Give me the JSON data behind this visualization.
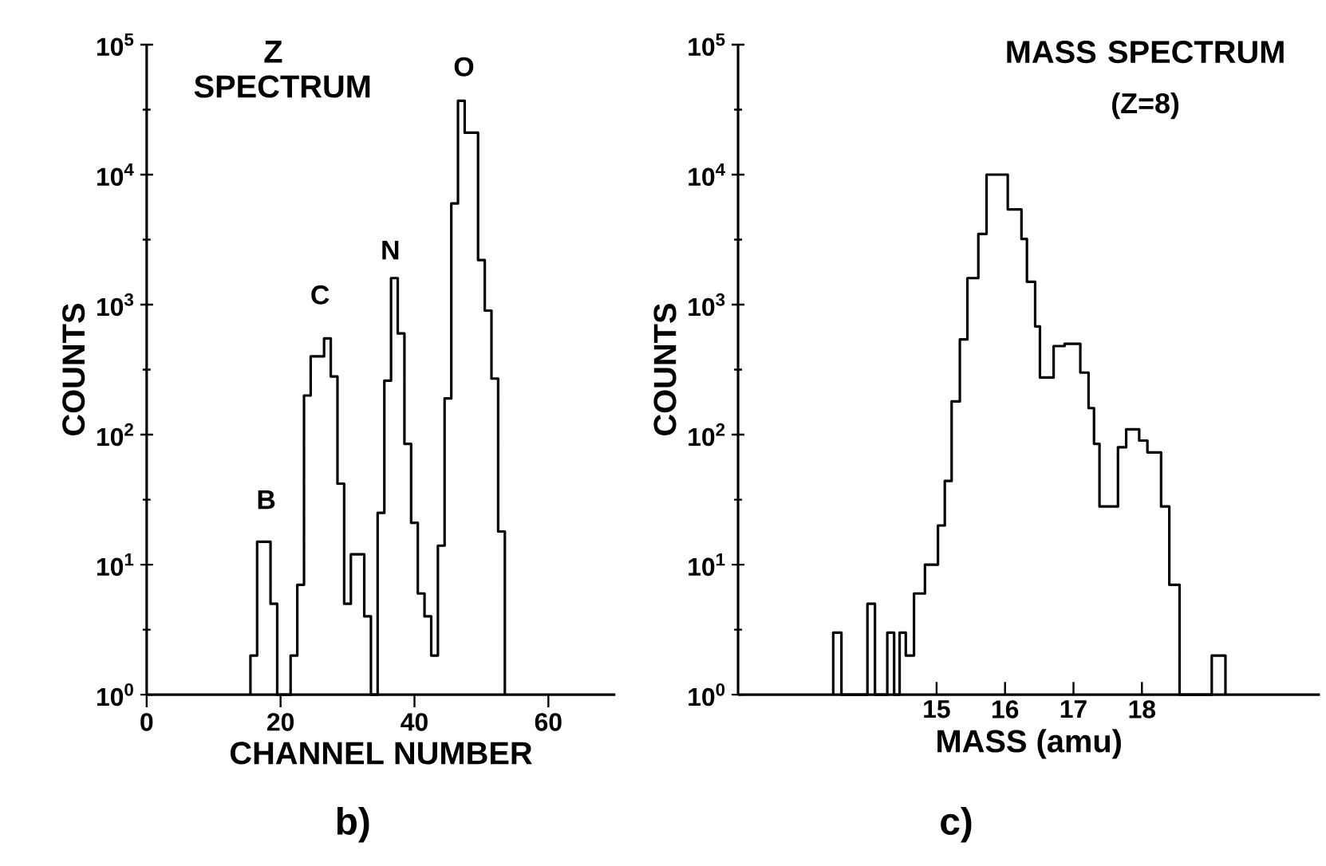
{
  "chart_data": [
    {
      "type": "histogram",
      "title": "Z SPECTRUM",
      "xlabel": "CHANNEL NUMBER",
      "ylabel": "COUNTS",
      "color": "#000000",
      "log": "y",
      "bins": [
        15.5,
        16.5,
        17.5,
        18.5,
        19.5,
        20.5,
        21.5,
        22.5,
        23.5,
        24.5,
        25.5,
        26.5,
        27.5,
        28.5,
        29.5,
        30.5,
        31.5,
        32.5,
        33.5,
        34.5,
        35.5,
        36.5,
        37.5,
        38.5,
        39.5,
        40.5,
        41.5,
        42.5,
        43.5,
        44.5,
        45.5,
        46.5,
        47.5,
        48.5,
        49.5,
        50.5,
        51.5,
        52.5,
        53.5
      ],
      "values": [
        2,
        15,
        15,
        5,
        1,
        1,
        2,
        7,
        200,
        400,
        400,
        550,
        280,
        42,
        5,
        12,
        12,
        4,
        1,
        25,
        260,
        1600,
        600,
        85,
        21,
        6,
        4,
        2,
        14,
        190,
        6000,
        37000,
        21000,
        21000,
        2200,
        900,
        270,
        18
      ],
      "xlim": [
        0,
        70
      ],
      "xticks": [
        0,
        20,
        40,
        60
      ],
      "ylim": [
        1,
        100000
      ],
      "yticks": [
        {
          "value": 1,
          "label": "10$^{0}$"
        },
        {
          "value": 10,
          "label": "10$^{1}$"
        },
        {
          "value": 100,
          "label": "10$^{2}$"
        },
        {
          "value": 1000,
          "label": "10$^{3}$"
        },
        {
          "value": 10000,
          "label": "10$^{4}$"
        },
        {
          "value": 100000,
          "label": "10$^{5}$"
        }
      ],
      "annotations": [
        "B",
        "C",
        "N",
        "O",
        "b)"
      ]
    },
    {
      "type": "histogram",
      "title": "MASS SPECTRUM",
      "subtitle": "(Z=8)",
      "xlabel": "MASS  (amu)",
      "ylabel": "COUNTS",
      "color": "#000000",
      "log": "y",
      "bins": [
        13.49,
        13.61,
        13.99,
        14.1,
        14.28,
        14.38,
        14.46,
        14.55,
        14.67,
        14.83,
        15.02,
        15.12,
        15.22,
        15.34,
        15.45,
        15.61,
        15.73,
        16.04,
        16.24,
        16.32,
        16.44,
        16.51,
        16.71,
        16.87,
        17.1,
        17.22,
        17.3,
        17.38,
        17.65,
        17.77,
        17.96,
        18.08,
        18.28,
        18.4,
        18.55,
        19.02,
        19.22
      ],
      "values": [
        3,
        1,
        5,
        1,
        3,
        1,
        3,
        2,
        6,
        10,
        20,
        44,
        180,
        540,
        1600,
        3500,
        10000,
        5400,
        3200,
        1500,
        680,
        275,
        480,
        500,
        300,
        160,
        85,
        28,
        80,
        110,
        90,
        73,
        28,
        7,
        1,
        2
      ],
      "xlim": [
        12.1,
        20.6
      ],
      "xticks": [
        15,
        16,
        17,
        18
      ],
      "ylim": [
        1,
        100000
      ],
      "yticks": [
        {
          "value": 1,
          "label": "10$^{0}$"
        },
        {
          "value": 10,
          "label": "10$^{1}$"
        },
        {
          "value": 100,
          "label": "10$^{2}$"
        },
        {
          "value": 1000,
          "label": "10$^{3}$"
        },
        {
          "value": 10000,
          "label": "10$^{4}$"
        },
        {
          "value": 100000,
          "label": "10$^{5}$"
        }
      ],
      "annotations": [
        "c)"
      ]
    }
  ]
}
